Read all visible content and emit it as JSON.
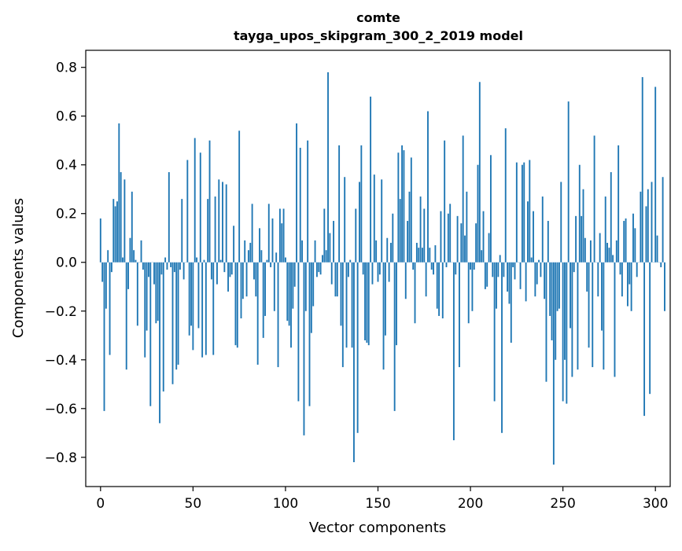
{
  "chart_data": {
    "type": "bar",
    "title": "comte",
    "subtitle": "tayga_upos_skipgram_300_2_2019 model",
    "xlabel": "Vector components",
    "ylabel": "Components values",
    "xlim": [
      -8,
      308
    ],
    "ylim": [
      -0.92,
      0.87
    ],
    "xticks": [
      0,
      50,
      100,
      150,
      200,
      250,
      300
    ],
    "xtick_labels": [
      "0",
      "50",
      "100",
      "150",
      "200",
      "250",
      "300"
    ],
    "yticks": [
      -0.8,
      -0.6,
      -0.4,
      -0.2,
      0.0,
      0.2,
      0.4,
      0.6,
      0.8
    ],
    "ytick_labels": [
      "−0.8",
      "−0.6",
      "−0.4",
      "−0.2",
      "0.0",
      "0.2",
      "0.4",
      "0.6",
      "0.8"
    ],
    "grid": false,
    "bar_color": "#1f77b4",
    "values": [
      0.18,
      -0.08,
      -0.61,
      -0.19,
      0.05,
      -0.38,
      -0.04,
      0.26,
      0.23,
      0.25,
      0.57,
      0.37,
      0.02,
      0.34,
      -0.44,
      -0.11,
      0.1,
      0.29,
      0.05,
      0.01,
      -0.26,
      0.0,
      0.09,
      -0.03,
      -0.39,
      -0.28,
      -0.06,
      -0.59,
      0.0,
      -0.09,
      -0.25,
      -0.24,
      -0.66,
      -0.05,
      -0.53,
      0.02,
      -0.03,
      0.37,
      -0.02,
      -0.5,
      -0.04,
      -0.44,
      -0.42,
      -0.03,
      0.26,
      -0.07,
      0.0,
      0.42,
      -0.3,
      -0.26,
      -0.36,
      0.51,
      0.02,
      -0.27,
      0.45,
      -0.39,
      0.01,
      -0.38,
      0.26,
      0.5,
      -0.07,
      -0.38,
      0.27,
      -0.09,
      0.34,
      0.01,
      0.33,
      -0.04,
      0.32,
      -0.12,
      -0.06,
      -0.05,
      0.15,
      -0.34,
      -0.35,
      0.54,
      -0.23,
      -0.15,
      0.09,
      -0.14,
      0.05,
      0.08,
      0.24,
      -0.07,
      -0.14,
      -0.42,
      0.14,
      0.05,
      -0.31,
      -0.22,
      0.01,
      0.24,
      -0.02,
      0.18,
      -0.2,
      0.04,
      -0.43,
      0.22,
      0.16,
      0.22,
      0.02,
      -0.24,
      -0.26,
      -0.35,
      -0.19,
      -0.1,
      0.57,
      -0.57,
      0.47,
      0.09,
      -0.71,
      -0.2,
      0.5,
      -0.59,
      -0.29,
      -0.18,
      0.09,
      -0.06,
      -0.04,
      -0.05,
      0.03,
      0.22,
      0.05,
      0.78,
      0.12,
      -0.09,
      0.17,
      -0.14,
      -0.14,
      0.48,
      -0.26,
      -0.43,
      0.35,
      -0.35,
      -0.06,
      0.01,
      -0.35,
      -0.82,
      0.22,
      -0.7,
      0.33,
      0.48,
      -0.05,
      -0.32,
      -0.33,
      -0.34,
      0.68,
      -0.09,
      0.36,
      0.09,
      -0.08,
      -0.05,
      0.34,
      -0.44,
      -0.3,
      0.1,
      -0.08,
      0.08,
      0.2,
      -0.61,
      -0.34,
      0.45,
      0.26,
      0.48,
      0.46,
      -0.15,
      0.17,
      0.29,
      0.43,
      -0.03,
      -0.25,
      0.08,
      0.06,
      0.27,
      0.06,
      0.22,
      -0.14,
      0.62,
      0.06,
      -0.03,
      -0.05,
      0.07,
      -0.19,
      -0.22,
      0.21,
      -0.23,
      0.5,
      -0.02,
      0.2,
      0.24,
      0.0,
      -0.73,
      -0.05,
      0.19,
      -0.43,
      0.16,
      0.52,
      0.11,
      0.29,
      -0.25,
      -0.03,
      -0.2,
      -0.03,
      0.16,
      0.4,
      0.74,
      0.05,
      0.21,
      -0.11,
      -0.1,
      0.12,
      0.44,
      -0.06,
      -0.57,
      -0.19,
      -0.06,
      0.03,
      -0.7,
      -0.06,
      0.55,
      -0.12,
      -0.17,
      -0.33,
      -0.02,
      -0.07,
      0.41,
      0.0,
      -0.11,
      0.4,
      0.41,
      -0.16,
      0.25,
      0.42,
      0.02,
      0.21,
      -0.14,
      -0.09,
      0.01,
      -0.06,
      0.27,
      -0.15,
      -0.49,
      0.17,
      -0.22,
      -0.32,
      -0.83,
      -0.4,
      -0.2,
      -0.19,
      0.33,
      -0.57,
      -0.4,
      -0.58,
      0.66,
      -0.27,
      -0.47,
      -0.04,
      0.19,
      -0.44,
      0.4,
      0.19,
      0.3,
      0.1,
      -0.12,
      -0.35,
      0.09,
      -0.43,
      0.52,
      0.0,
      -0.14,
      0.12,
      -0.28,
      -0.44,
      0.27,
      0.08,
      0.06,
      0.37,
      0.03,
      -0.47,
      0.09,
      0.48,
      -0.05,
      -0.14,
      0.17,
      0.18,
      -0.18,
      -0.09,
      -0.2,
      0.2,
      0.14,
      -0.06,
      0.0,
      0.29,
      0.76,
      -0.63,
      0.23,
      0.3,
      -0.54,
      0.33,
      0.0,
      0.72,
      0.11,
      0.0,
      -0.02,
      0.35,
      -0.2
    ]
  }
}
